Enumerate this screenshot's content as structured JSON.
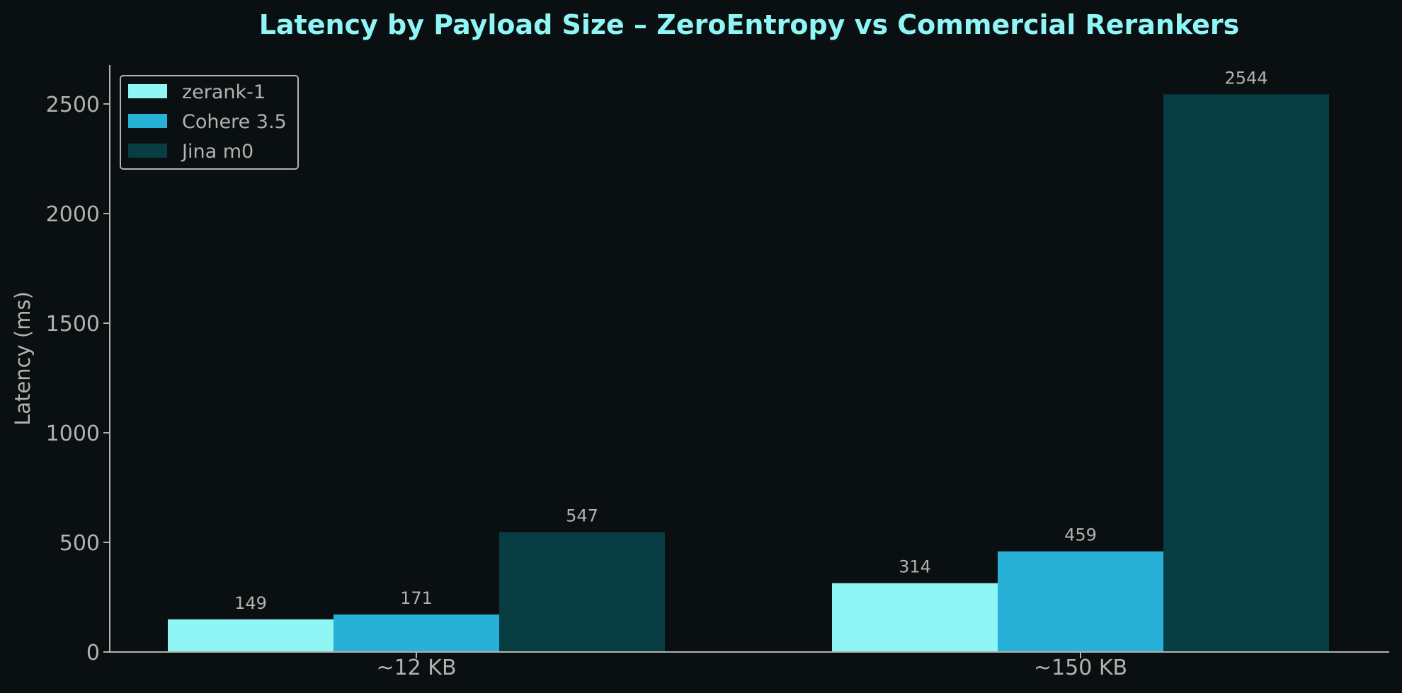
{
  "chart_data": {
    "type": "bar",
    "title": "Latency by Payload Size – ZeroEntropy vs Commercial Rerankers",
    "xlabel": "",
    "ylabel": "Latency (ms)",
    "categories": [
      "~12 KB",
      "~150 KB"
    ],
    "series": [
      {
        "name": "zerank-1",
        "color": "#8ff6f5",
        "values": [
          149,
          314
        ]
      },
      {
        "name": "Cohere 3.5",
        "color": "#27b1d6",
        "values": [
          171,
          459
        ]
      },
      {
        "name": "Jina m0",
        "color": "#073d43",
        "values": [
          547,
          2544
        ]
      }
    ],
    "ylim": [
      0,
      2671
    ],
    "yticks": [
      0,
      500,
      1000,
      1500,
      2000,
      2500
    ],
    "legend_position": "top-left",
    "grid": false
  }
}
